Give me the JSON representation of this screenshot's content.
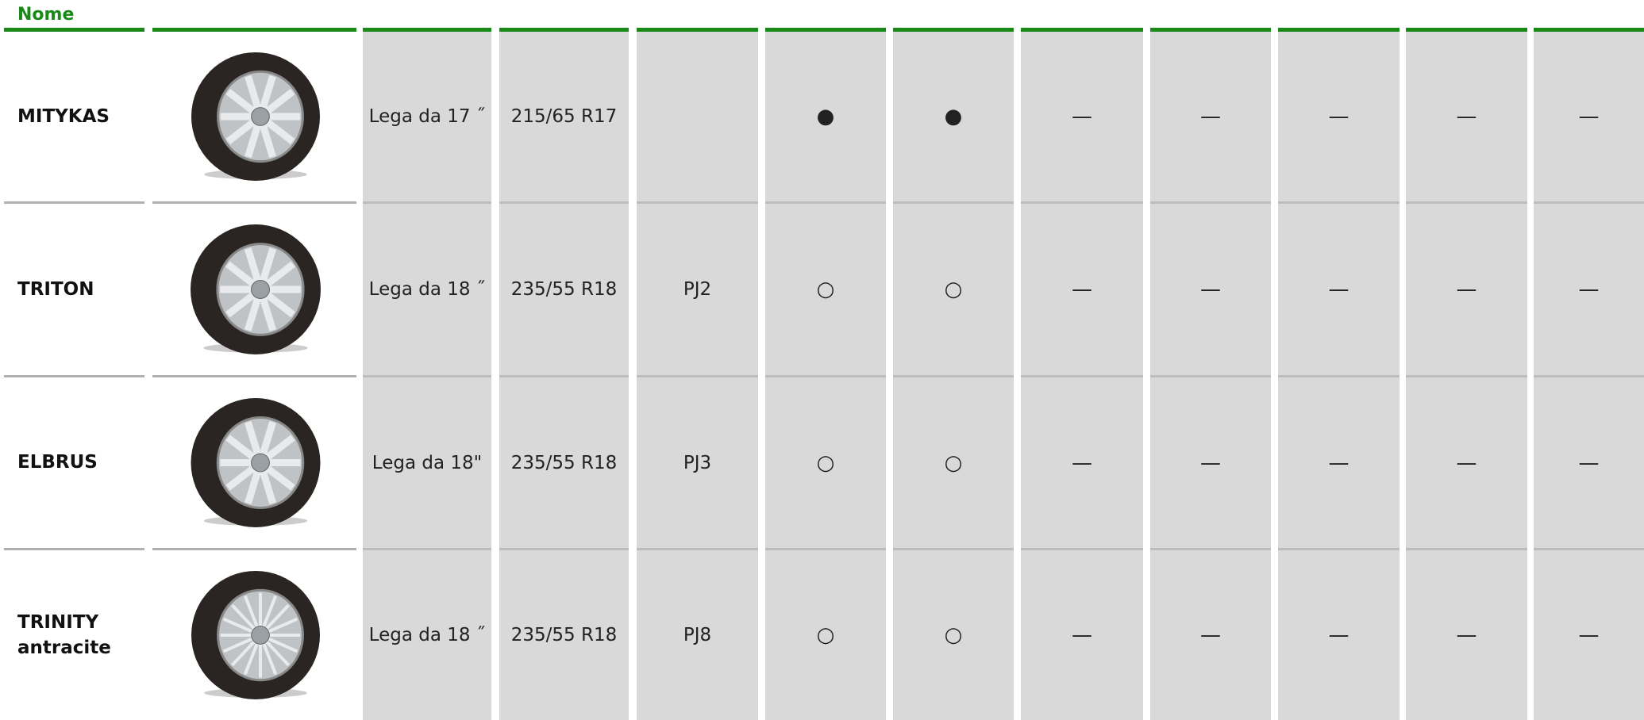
{
  "header": {
    "title": "Nome"
  },
  "rows": [
    {
      "name": "MITYKAS",
      "cells": [
        "Lega da 17 ˝",
        "215/65 R17",
        null,
        "●",
        "●",
        "—",
        "—",
        "—",
        "—",
        "—"
      ]
    },
    {
      "name": "TRITON",
      "cells": [
        "Lega da 18 ˝",
        "235/55 R18",
        "PJ2",
        "○",
        "○",
        "—",
        "—",
        "—",
        "—",
        "—"
      ]
    },
    {
      "name": "ELBRUS",
      "cells": [
        "Lega da 18\"",
        "235/55 R18",
        "PJ3",
        "○",
        "○",
        "—",
        "—",
        "—",
        "—",
        "—"
      ]
    },
    {
      "name": "TRINITY antracite",
      "cells": [
        "Lega da 18 ˝",
        "235/55 R18",
        "PJ8",
        "○",
        "○",
        "—",
        "—",
        "—",
        "—",
        "—"
      ]
    }
  ]
}
